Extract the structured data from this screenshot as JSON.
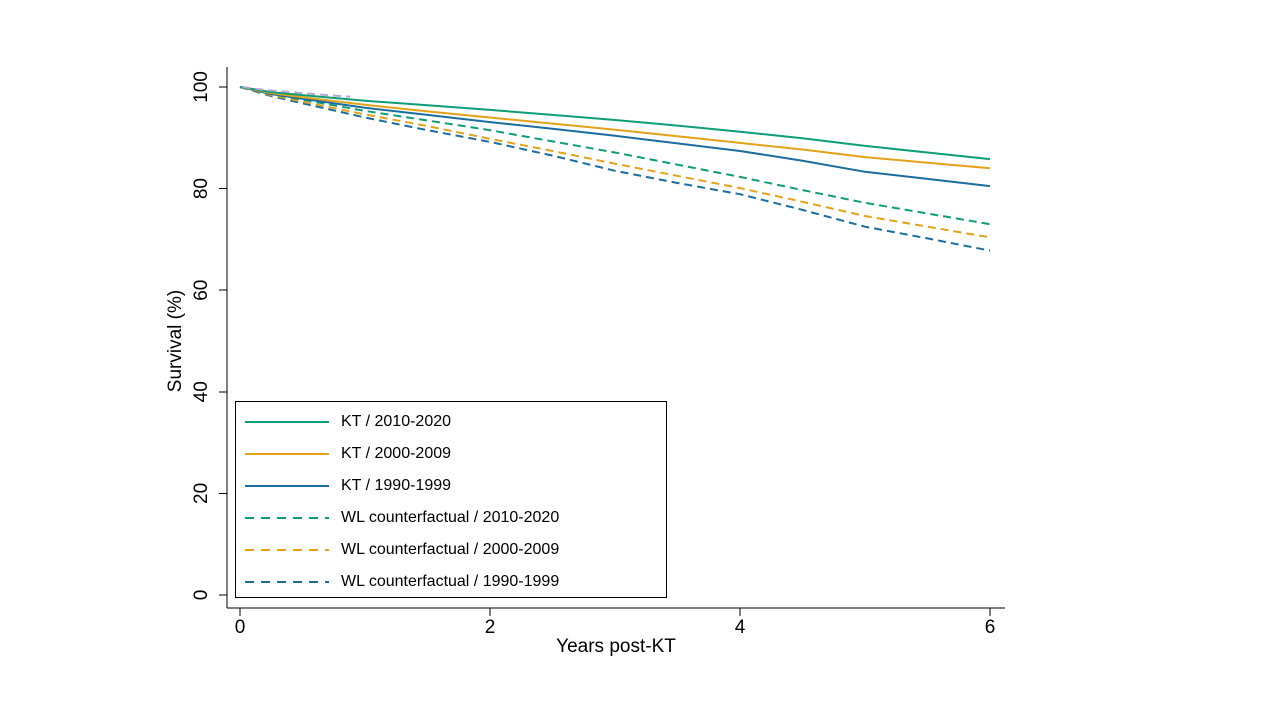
{
  "figure": {
    "background_color": "#ffffff",
    "text_color": "#000000",
    "axis_color": "#000000"
  },
  "chart_data": {
    "type": "line",
    "xlabel": "Years post-KT",
    "ylabel": "Survival (%)",
    "xlim": [
      0,
      6
    ],
    "ylim": [
      0,
      100
    ],
    "x_ticks": [
      0,
      2,
      4,
      6
    ],
    "y_ticks": [
      0,
      20,
      40,
      60,
      80,
      100
    ],
    "grid": false,
    "legend_position": "inside-bottom-left",
    "x": [
      0,
      0.25,
      0.5,
      1,
      1.5,
      2,
      2.5,
      3,
      3.5,
      4,
      4.5,
      5,
      5.5,
      6
    ],
    "series": [
      {
        "label": "KT / 2010-2020",
        "line_style": "solid",
        "color": "#0f9d77",
        "values": [
          100,
          99.0,
          98.4,
          97.3,
          96.4,
          95.5,
          94.5,
          93.5,
          92.4,
          91.2,
          89.9,
          88.4,
          87.1,
          85.8
        ]
      },
      {
        "label": "KT / 2000-2009",
        "line_style": "solid",
        "color": "#e3a21a",
        "values": [
          100,
          98.8,
          98.0,
          96.5,
          95.2,
          94.0,
          92.8,
          91.6,
          90.3,
          89.0,
          87.7,
          86.2,
          85.1,
          84.0
        ]
      },
      {
        "label": "KT / 1990-1999",
        "line_style": "solid",
        "color": "#1a6d9e",
        "values": [
          100,
          98.6,
          97.7,
          95.9,
          94.5,
          93.1,
          91.8,
          90.4,
          88.9,
          87.4,
          85.5,
          83.3,
          81.9,
          80.5
        ]
      },
      {
        "label": "WL counterfactual / 2010-2020",
        "line_style": "dashed",
        "color": "#0f9d77",
        "values": [
          100,
          98.6,
          97.5,
          95.3,
          93.4,
          91.5,
          89.3,
          87.1,
          84.7,
          82.3,
          79.7,
          77.2,
          75.1,
          73.0
        ]
      },
      {
        "label": "WL counterfactual / 2000-2009",
        "line_style": "dashed",
        "color": "#e3a21a",
        "values": [
          100,
          98.4,
          97.1,
          94.6,
          92.3,
          89.8,
          87.4,
          84.9,
          82.5,
          80.1,
          77.4,
          74.6,
          72.5,
          70.4
        ]
      },
      {
        "label": "WL counterfactual / 1990-1999",
        "line_style": "dashed",
        "color": "#1a6d9e",
        "values": [
          100,
          98.2,
          96.8,
          94.0,
          91.5,
          89.2,
          86.5,
          83.5,
          81.1,
          78.9,
          75.8,
          72.5,
          70.2,
          67.8
        ]
      }
    ],
    "unlabeled_overlap_segment": {
      "line_style": "dashed",
      "color": "#b3a7d6",
      "x": [
        0.02,
        0.2,
        0.45,
        0.7,
        0.88
      ],
      "values": [
        100,
        99.4,
        98.9,
        98.4,
        98.1
      ]
    }
  }
}
